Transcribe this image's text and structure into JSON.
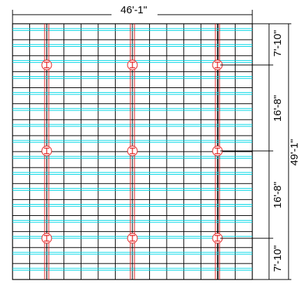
{
  "dimensions": {
    "overall_width": "46'-1\"",
    "overall_height": "49'-1\"",
    "bay_top": "7'-10\"",
    "bay_upper_mid": "16'-8\"",
    "bay_lower_mid": "16'-8\"",
    "bay_bottom": "7'-10\""
  },
  "colors": {
    "joist_lines": "#000000",
    "cyan_purlins": "#00d7e6",
    "red_beams": "#e11b1b",
    "column_symbol": "#e11b1b",
    "dimension_lines": "#000000"
  },
  "plan": {
    "column_rows": 3,
    "column_cols": 3,
    "column_symbol_icon": "column-wide-flange-icon"
  }
}
